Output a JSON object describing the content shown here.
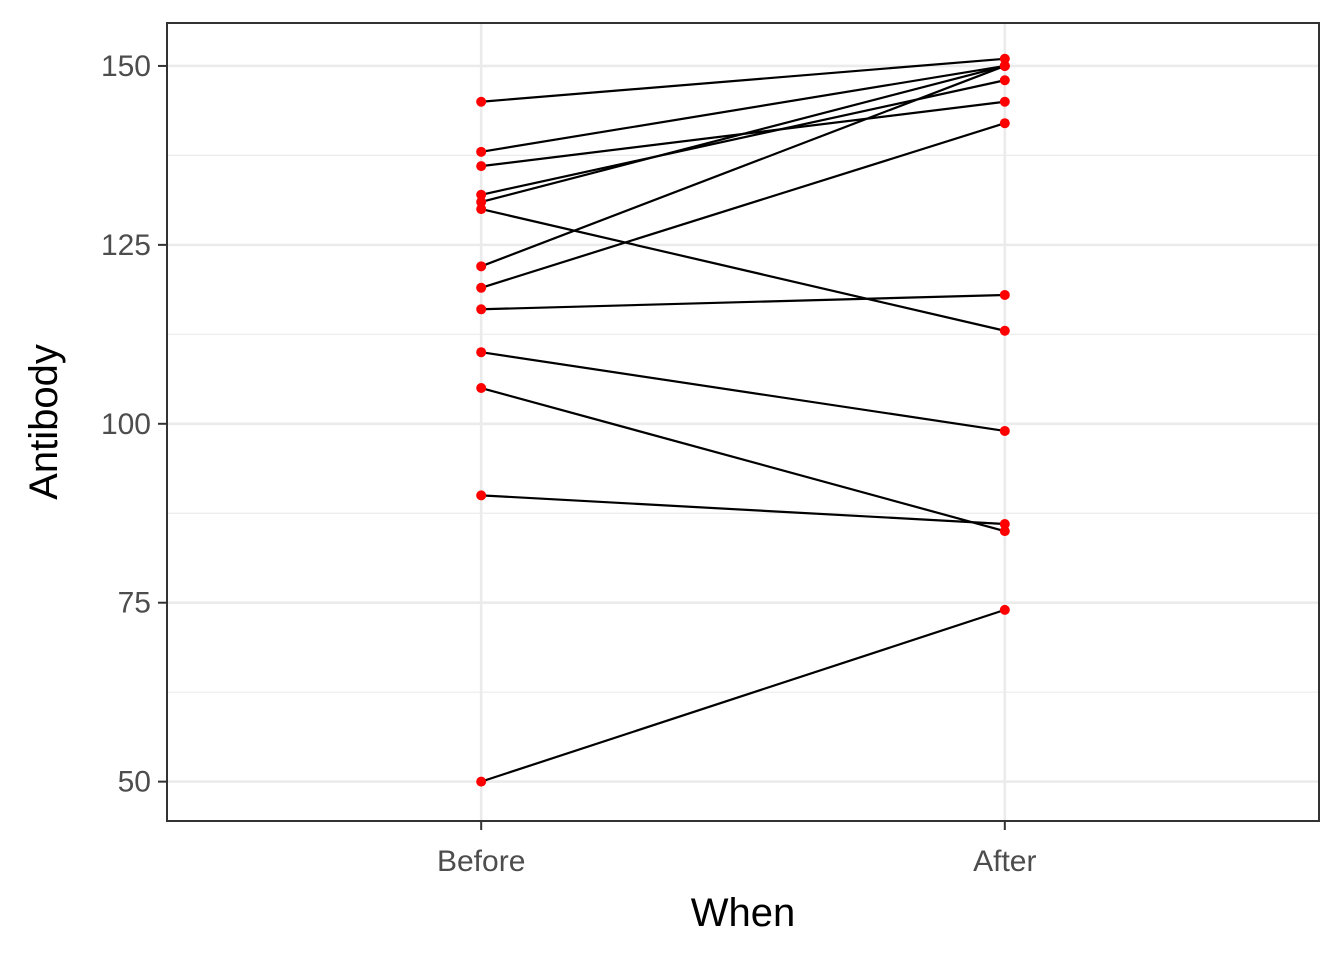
{
  "chart_data": {
    "type": "line",
    "subtype": "paired-slope",
    "title": "",
    "xlabel": "When",
    "ylabel": "Antibody",
    "categories": [
      "Before",
      "After"
    ],
    "ylim": [
      44.5,
      156
    ],
    "y_ticks": [
      50,
      75,
      100,
      125,
      150
    ],
    "y_minor_ticks": [
      62.5,
      87.5,
      112.5,
      137.5
    ],
    "grid": true,
    "legend": "none",
    "point_color": "#ff0000",
    "line_color": "#000000",
    "pairs": [
      {
        "before": 145,
        "after": 151
      },
      {
        "before": 138,
        "after": 150
      },
      {
        "before": 136,
        "after": 145
      },
      {
        "before": 132,
        "after": 148
      },
      {
        "before": 131,
        "after": 150
      },
      {
        "before": 130,
        "after": 113
      },
      {
        "before": 122,
        "after": 150
      },
      {
        "before": 119,
        "after": 142
      },
      {
        "before": 116,
        "after": 118
      },
      {
        "before": 110,
        "after": 99
      },
      {
        "before": 105,
        "after": 85
      },
      {
        "before": 90,
        "after": 86
      },
      {
        "before": 50,
        "after": 74
      }
    ]
  }
}
